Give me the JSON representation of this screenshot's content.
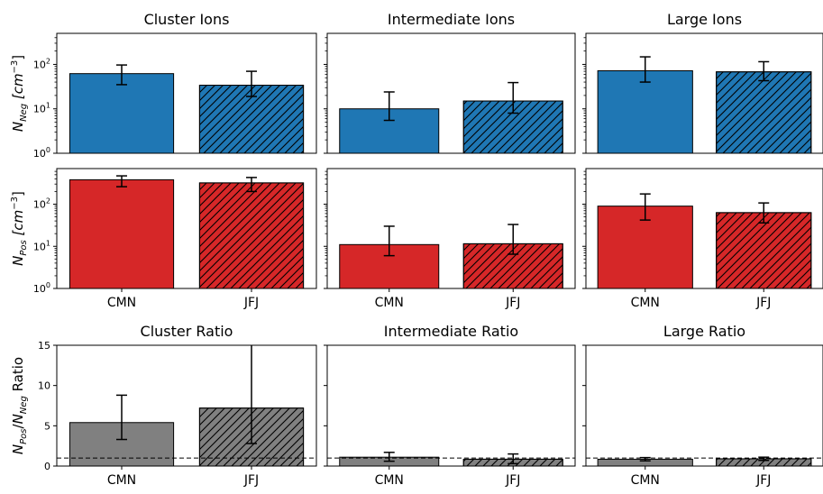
{
  "chart_data": {
    "type": "bar",
    "categories": [
      "CMN",
      "JFJ"
    ],
    "colors": {
      "negative": "#1f77b4",
      "positive": "#d62728",
      "ratio": "#808080"
    },
    "hatch": {
      "CMN": "none",
      "JFJ": "diagonal"
    },
    "reference_line": {
      "y": 1,
      "style": "dashed",
      "rows": [
        "ratio"
      ]
    },
    "y_labels": {
      "negative": {
        "main": "N",
        "sub": "Neg",
        "unit_pre": "[cm",
        "unit_sup": "−3",
        "unit_post": "]"
      },
      "positive": {
        "main": "N",
        "sub": "Pos",
        "unit_pre": "[cm",
        "unit_sup": "−3",
        "unit_post": "]"
      },
      "ratio": {
        "n1": "N",
        "s1": "Pos",
        "slash": "/",
        "n2": "N",
        "s2": "Neg",
        "rest": " Ratio"
      }
    },
    "axes": {
      "negative": {
        "scale": "log",
        "ylim": [
          1,
          500
        ],
        "ticks": [
          {
            "base": "10",
            "exp": "0",
            "v": 1
          },
          {
            "base": "10",
            "exp": "1",
            "v": 10
          },
          {
            "base": "10",
            "exp": "2",
            "v": 100
          }
        ]
      },
      "positive": {
        "scale": "log",
        "ylim": [
          1,
          700
        ],
        "ticks": [
          {
            "base": "10",
            "exp": "0",
            "v": 1
          },
          {
            "base": "10",
            "exp": "1",
            "v": 10
          },
          {
            "base": "10",
            "exp": "2",
            "v": 100
          }
        ]
      },
      "ratio": {
        "scale": "linear",
        "ylim": [
          0,
          15
        ],
        "ticks": [
          {
            "label": "0",
            "v": 0
          },
          {
            "label": "5",
            "v": 5
          },
          {
            "label": "10",
            "v": 10
          },
          {
            "label": "15",
            "v": 15
          }
        ]
      }
    },
    "panels": [
      {
        "row": "negative",
        "col": 0,
        "title": "Cluster Ions",
        "show_x": false,
        "values": [
          62,
          34
        ],
        "err_low": [
          35,
          19
        ],
        "err_high": [
          97,
          70
        ]
      },
      {
        "row": "negative",
        "col": 1,
        "title": "Intermediate Ions",
        "show_x": false,
        "values": [
          10,
          15
        ],
        "err_low": [
          5.5,
          8
        ],
        "err_high": [
          24,
          39
        ]
      },
      {
        "row": "negative",
        "col": 2,
        "title": "Large Ions",
        "show_x": false,
        "values": [
          72,
          68
        ],
        "err_low": [
          40,
          43
        ],
        "err_high": [
          148,
          115
        ]
      },
      {
        "row": "positive",
        "col": 0,
        "title": "",
        "show_x": true,
        "values": [
          380,
          320
        ],
        "err_low": [
          260,
          200
        ],
        "err_high": [
          470,
          430
        ]
      },
      {
        "row": "positive",
        "col": 1,
        "title": "",
        "show_x": true,
        "values": [
          11,
          11.5
        ],
        "err_low": [
          6,
          6.5
        ],
        "err_high": [
          30,
          33
        ]
      },
      {
        "row": "positive",
        "col": 2,
        "title": "",
        "show_x": true,
        "values": [
          90,
          63
        ],
        "err_low": [
          42,
          36
        ],
        "err_high": [
          175,
          107
        ]
      },
      {
        "row": "ratio",
        "col": 0,
        "title": "Cluster Ratio",
        "show_x": true,
        "values": [
          5.4,
          7.2
        ],
        "err_low": [
          3.3,
          2.8
        ],
        "err_high": [
          8.8,
          15.5
        ]
      },
      {
        "row": "ratio",
        "col": 1,
        "title": "Intermediate Ratio",
        "show_x": true,
        "values": [
          1.1,
          0.85
        ],
        "err_low": [
          0.6,
          0.3
        ],
        "err_high": [
          1.7,
          1.5
        ]
      },
      {
        "row": "ratio",
        "col": 2,
        "title": "Large Ratio",
        "show_x": true,
        "values": [
          0.85,
          0.9
        ],
        "err_low": [
          0.65,
          0.7
        ],
        "err_high": [
          1.05,
          1.1
        ]
      }
    ]
  }
}
